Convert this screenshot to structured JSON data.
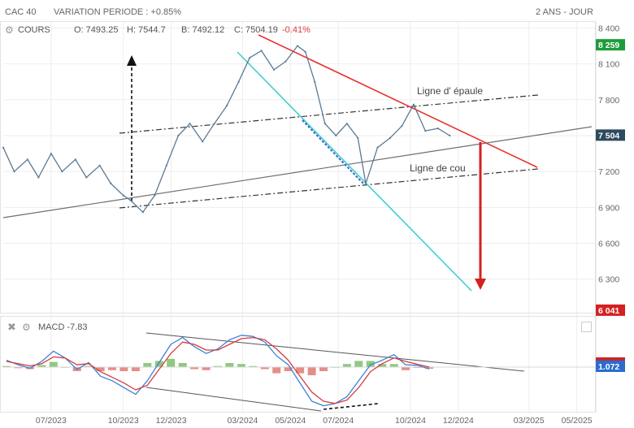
{
  "header": {
    "symbol": "CAC 40",
    "variation": "VARIATION PERIODE : +0.85%",
    "period": "2 ANS - JOUR",
    "series_label": "COURS",
    "open": "O: 7493.25",
    "high": "H: 7544.7",
    "low": "B: 7492.12",
    "close": "C: 7504.19",
    "change": "-0.41%"
  },
  "macd": {
    "label": "MACD -7.83",
    "value_tag": "1.072"
  },
  "price_tags": {
    "high_tag": "8 259",
    "last_tag": "7 504",
    "target_tag": "6 041"
  },
  "annotations": {
    "shoulder_line": "Ligne d' épaule",
    "neckline": "Ligne de cou"
  },
  "colors": {
    "price_line": "#5c7a94",
    "red_line": "#e8332f",
    "cyan_line": "#3ecfcf",
    "gray_line": "#6e6e6e",
    "high_tag": "#1e9c3a",
    "last_tag": "#2e4a5e",
    "target_tag": "#d42020",
    "macd_line": "#3b82d6",
    "signal_line": "#d63c3c",
    "hist_pos": "#7cbf6a",
    "hist_neg": "#e07a74"
  },
  "icons": [
    "gear-icon",
    "close-icon",
    "settings-icon"
  ],
  "chart_data": [
    {
      "type": "line",
      "title": "CAC 40",
      "y_ticks": [
        "8 400",
        "8 100",
        "7 800",
        "7 500",
        "7 200",
        "6 900",
        "6 600",
        "6 300"
      ],
      "y_tick_values": [
        8400,
        8100,
        7800,
        7500,
        7200,
        6900,
        6600,
        6300
      ],
      "x_ticks": [
        "07/2023",
        "10/2023",
        "12/2023",
        "03/2024",
        "05/2024",
        "07/2024",
        "10/2024",
        "12/2024",
        "03/2025",
        "05/2025"
      ],
      "x_tick_dates": [
        "2023-07-01",
        "2023-10-01",
        "2023-12-01",
        "2024-03-01",
        "2024-05-01",
        "2024-07-01",
        "2024-10-01",
        "2024-12-01",
        "2025-03-01",
        "2025-05-01"
      ],
      "ylim": [
        6020,
        8450
      ],
      "xlim": [
        "2023-05-01",
        "2025-05-20"
      ],
      "grid": true,
      "series": [
        {
          "dates": [
            "2023-05-01",
            "2023-05-15",
            "2023-06-01",
            "2023-06-15",
            "2023-07-01",
            "2023-07-15",
            "2023-08-01",
            "2023-08-15",
            "2023-09-01",
            "2023-09-15",
            "2023-10-01",
            "2023-10-10",
            "2023-10-26",
            "2023-11-10",
            "2023-11-25",
            "2023-12-10",
            "2023-12-25",
            "2024-01-10",
            "2024-01-25",
            "2024-02-10",
            "2024-02-25",
            "2024-03-10",
            "2024-03-25",
            "2024-04-10",
            "2024-04-25",
            "2024-05-10",
            "2024-05-20",
            "2024-06-01",
            "2024-06-14",
            "2024-06-28",
            "2024-07-12",
            "2024-07-26",
            "2024-08-05",
            "2024-08-20",
            "2024-09-05",
            "2024-09-20",
            "2024-10-05",
            "2024-10-20",
            "2024-11-05",
            "2024-11-20"
          ],
          "values": [
            7400,
            7200,
            7300,
            7150,
            7350,
            7200,
            7300,
            7150,
            7250,
            7100,
            7000,
            6960,
            6860,
            7000,
            7250,
            7500,
            7600,
            7450,
            7600,
            7750,
            7950,
            8150,
            8210,
            8050,
            8120,
            8250,
            8200,
            7950,
            7600,
            7500,
            7600,
            7480,
            7100,
            7400,
            7480,
            7580,
            7760,
            7540,
            7560,
            7500
          ]
        }
      ],
      "annotations": [
        "Ligne d' épaule",
        "Ligne de cou"
      ]
    },
    {
      "type": "line",
      "title": "MACD -7.83",
      "series": [
        {
          "name": "MACD",
          "values": [
            30,
            10,
            -5,
            25,
            70,
            40,
            -10,
            20,
            -40,
            -60,
            -90,
            -120,
            -60,
            20,
            100,
            130,
            90,
            60,
            80,
            120,
            140,
            135,
            110,
            50,
            10,
            -70,
            -150,
            -170,
            -160,
            -130,
            -60,
            10,
            30,
            55,
            10,
            8,
            -7.83
          ]
        },
        {
          "name": "Signal",
          "values": [
            25,
            15,
            5,
            15,
            45,
            40,
            10,
            15,
            -20,
            -45,
            -70,
            -100,
            -80,
            -10,
            60,
            110,
            100,
            75,
            75,
            100,
            125,
            130,
            120,
            80,
            30,
            -40,
            -110,
            -150,
            -160,
            -145,
            -90,
            -20,
            15,
            40,
            25,
            12,
            0
          ]
        }
      ]
    }
  ]
}
